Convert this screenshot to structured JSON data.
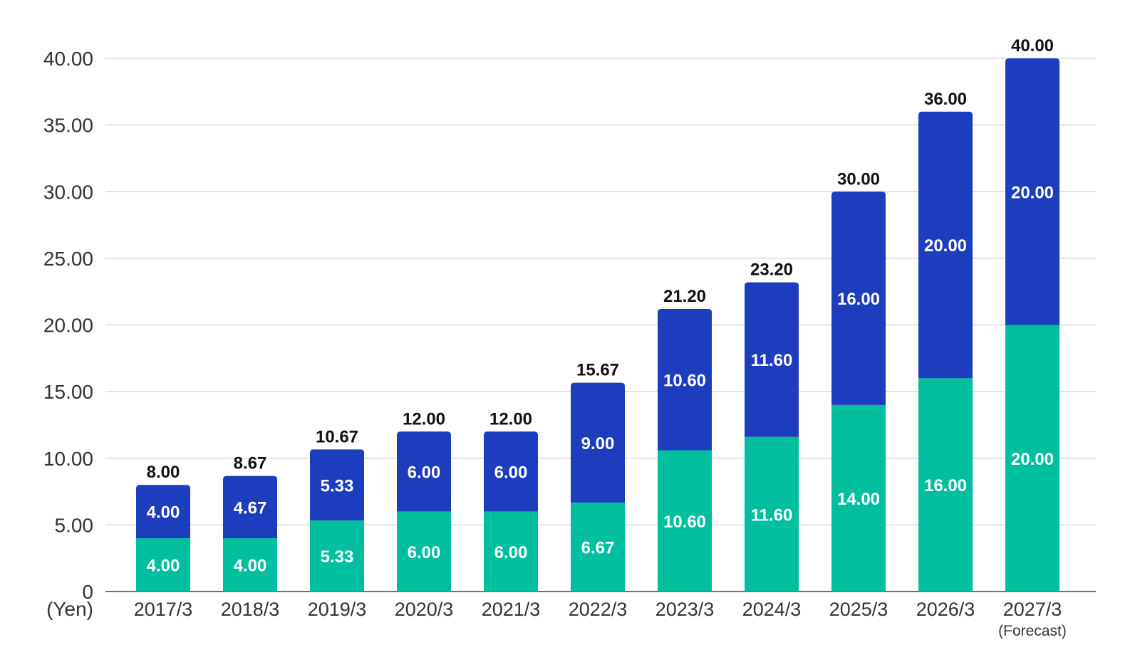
{
  "chart_data": {
    "type": "bar",
    "stacked": true,
    "title": "",
    "xlabel": "",
    "ylabel": "(Yen)",
    "ylim": [
      0,
      40
    ],
    "yticks": [
      "0",
      "5.00",
      "10.00",
      "15.00",
      "20.00",
      "25.00",
      "30.00",
      "35.00",
      "40.00"
    ],
    "grid": true,
    "legend": "none",
    "categories": [
      "2017/3",
      "2018/3",
      "2019/3",
      "2020/3",
      "2021/3",
      "2022/3",
      "2023/3",
      "2024/3",
      "2025/3",
      "2026/3",
      "2027/3"
    ],
    "category_notes": [
      "",
      "",
      "",
      "",
      "",
      "",
      "",
      "",
      "",
      "",
      "(Forecast)"
    ],
    "series": [
      {
        "color": "#00bf9f",
        "values": [
          4.0,
          4.0,
          5.33,
          6.0,
          6.0,
          6.67,
          10.6,
          11.6,
          14.0,
          16.0,
          20.0
        ],
        "labels": [
          "4.00",
          "4.00",
          "5.33",
          "6.00",
          "6.00",
          "6.67",
          "10.60",
          "11.60",
          "14.00",
          "16.00",
          "20.00"
        ]
      },
      {
        "color": "#1b3dbe",
        "values": [
          4.0,
          4.67,
          5.33,
          6.0,
          6.0,
          9.0,
          10.6,
          11.6,
          16.0,
          20.0,
          20.0
        ],
        "labels": [
          "4.00",
          "4.67",
          "5.33",
          "6.00",
          "6.00",
          "9.00",
          "10.60",
          "11.60",
          "16.00",
          "20.00",
          "20.00"
        ]
      }
    ],
    "totals": [
      "8.00",
      "8.67",
      "10.67",
      "12.00",
      "12.00",
      "15.67",
      "21.20",
      "23.20",
      "30.00",
      "36.00",
      "40.00"
    ]
  }
}
